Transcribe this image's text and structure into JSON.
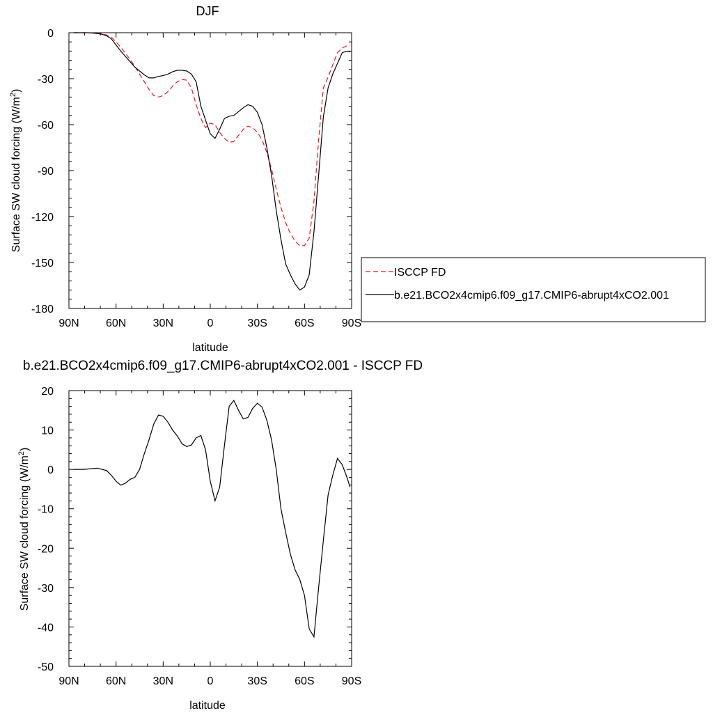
{
  "chart_data": [
    {
      "type": "line",
      "title": "DJF",
      "xlabel": "latitude",
      "ylabel_main": "Surface SW cloud forcing (W/m",
      "ylabel_sup": "2",
      "ylabel_close": ")",
      "xlim": [
        90,
        -90
      ],
      "ylim": [
        -180,
        0
      ],
      "xticks": [
        {
          "value": 90,
          "label": "90N"
        },
        {
          "value": 60,
          "label": "60N"
        },
        {
          "value": 30,
          "label": "30N"
        },
        {
          "value": 0,
          "label": "0"
        },
        {
          "value": -30,
          "label": "30S"
        },
        {
          "value": -60,
          "label": "60S"
        },
        {
          "value": -90,
          "label": "90S"
        }
      ],
      "yticks": [
        {
          "value": 0,
          "label": "0"
        },
        {
          "value": -30,
          "label": "-30"
        },
        {
          "value": -60,
          "label": "-60"
        },
        {
          "value": -90,
          "label": "-90"
        },
        {
          "value": -120,
          "label": "-120"
        },
        {
          "value": -150,
          "label": "-150"
        },
        {
          "value": -180,
          "label": "-180"
        }
      ],
      "legend_position": "right",
      "series": [
        {
          "name": "ISCCP FD",
          "color": "#e31a1c",
          "dash": "dashed",
          "x": [
            87,
            84,
            81,
            78,
            75,
            72,
            69,
            66,
            63,
            60,
            57,
            54,
            51,
            48,
            45,
            42,
            39,
            36,
            33,
            30,
            27,
            24,
            21,
            18,
            15,
            12,
            9,
            6,
            3,
            0,
            -3,
            -6,
            -9,
            -12,
            -15,
            -18,
            -21,
            -24,
            -27,
            -30,
            -33,
            -36,
            -39,
            -42,
            -45,
            -48,
            -51,
            -54,
            -57,
            -60,
            -63,
            -66,
            -69,
            -72,
            -75,
            -78,
            -81,
            -84,
            -87,
            -89
          ],
          "y": [
            0,
            0,
            0,
            0,
            -0.2,
            -0.4,
            -0.7,
            -1.5,
            -3,
            -6,
            -9.5,
            -13.5,
            -17.5,
            -22,
            -27,
            -32,
            -37,
            -41,
            -42,
            -41,
            -38.5,
            -35,
            -32,
            -30.5,
            -31,
            -36,
            -47,
            -56,
            -62,
            -59,
            -60,
            -65,
            -69,
            -71.5,
            -71,
            -67,
            -63,
            -61,
            -62,
            -65,
            -70,
            -78,
            -89,
            -102,
            -114,
            -124,
            -131,
            -136,
            -139,
            -139,
            -134,
            -110,
            -70,
            -36,
            -29,
            -21,
            -13,
            -10,
            -8.5,
            -8.5
          ]
        },
        {
          "name": "b.e21.BCO2x4cmip6.f09_g17.CMIP6-abrupt4xCO2.001",
          "color": "#000000",
          "dash": "solid",
          "x": [
            87,
            84,
            81,
            78,
            75,
            72,
            69,
            66,
            63,
            60,
            57,
            54,
            51,
            48,
            45,
            42,
            39,
            36,
            33,
            30,
            27,
            24,
            21,
            18,
            15,
            12,
            9,
            6,
            3,
            0,
            -3,
            -6,
            -9,
            -12,
            -15,
            -18,
            -21,
            -24,
            -27,
            -30,
            -33,
            -36,
            -39,
            -42,
            -45,
            -48,
            -51,
            -54,
            -57,
            -60,
            -63,
            -66,
            -69,
            -72,
            -75,
            -78,
            -81,
            -84,
            -87,
            -89
          ],
          "y": [
            0,
            0,
            0,
            0,
            -0.2,
            -0.5,
            -1,
            -2,
            -4,
            -8,
            -12,
            -15.5,
            -19,
            -22.5,
            -25,
            -27.5,
            -29.5,
            -29.5,
            -28.5,
            -28,
            -27,
            -25.5,
            -24.5,
            -24.5,
            -25,
            -27,
            -32,
            -48,
            -57,
            -66,
            -69,
            -63,
            -56,
            -54.5,
            -54,
            -51.5,
            -49,
            -47,
            -48,
            -52,
            -60,
            -75,
            -93,
            -116,
            -135,
            -151,
            -158,
            -164,
            -168,
            -166,
            -158,
            -130,
            -93,
            -55,
            -36,
            -27,
            -20,
            -13,
            -12,
            -12.5
          ]
        }
      ]
    },
    {
      "type": "line",
      "title": "b.e21.BCO2x4cmip6.f09_g17.CMIP6-abrupt4xCO2.001 - ISCCP FD",
      "xlabel": "latitude",
      "ylabel_main": "Surface SW cloud forcing (W/m",
      "ylabel_sup": "2",
      "ylabel_close": ")",
      "xlim": [
        90,
        -90
      ],
      "ylim": [
        -50,
        20
      ],
      "xticks": [
        {
          "value": 90,
          "label": "90N"
        },
        {
          "value": 60,
          "label": "60N"
        },
        {
          "value": 30,
          "label": "30N"
        },
        {
          "value": 0,
          "label": "0"
        },
        {
          "value": -30,
          "label": "30S"
        },
        {
          "value": -60,
          "label": "60S"
        },
        {
          "value": -90,
          "label": "90S"
        }
      ],
      "yticks": [
        {
          "value": 20,
          "label": "20"
        },
        {
          "value": 10,
          "label": "10"
        },
        {
          "value": 0,
          "label": "0"
        },
        {
          "value": -10,
          "label": "-10"
        },
        {
          "value": -20,
          "label": "-20"
        },
        {
          "value": -30,
          "label": "-30"
        },
        {
          "value": -40,
          "label": "-40"
        },
        {
          "value": -50,
          "label": "-50"
        }
      ],
      "series": [
        {
          "color": "#000000",
          "dash": "solid",
          "x": [
            87,
            84,
            81,
            78,
            75,
            72,
            69,
            66,
            63,
            60,
            57,
            54,
            51,
            48,
            45,
            42,
            39,
            36,
            33,
            30,
            27,
            24,
            21,
            18,
            15,
            12,
            9,
            6,
            3,
            0,
            -3,
            -6,
            -9,
            -12,
            -15,
            -18,
            -21,
            -24,
            -27,
            -30,
            -33,
            -36,
            -39,
            -42,
            -45,
            -48,
            -51,
            -54,
            -57,
            -60,
            -63,
            -66,
            -69,
            -72,
            -75,
            -78,
            -81,
            -84,
            -87,
            -89
          ],
          "y": [
            0,
            0,
            0,
            0.1,
            0.2,
            0.3,
            0,
            -0.3,
            -1.5,
            -3,
            -4,
            -3.5,
            -2.5,
            -2,
            0,
            4,
            7.5,
            11.5,
            13.8,
            13.5,
            12,
            10,
            8.5,
            6.5,
            5.8,
            6.2,
            8,
            8.6,
            5,
            -3,
            -8,
            -4.5,
            6,
            16,
            17.5,
            15,
            12.8,
            13.2,
            15.5,
            16.8,
            15.8,
            12.5,
            7.5,
            0,
            -10,
            -16,
            -21.5,
            -25.5,
            -28,
            -32,
            -40.5,
            -42.5,
            -30,
            -18,
            -6.5,
            -1.5,
            2.8,
            1.2,
            -2,
            -4.5
          ]
        }
      ]
    }
  ]
}
